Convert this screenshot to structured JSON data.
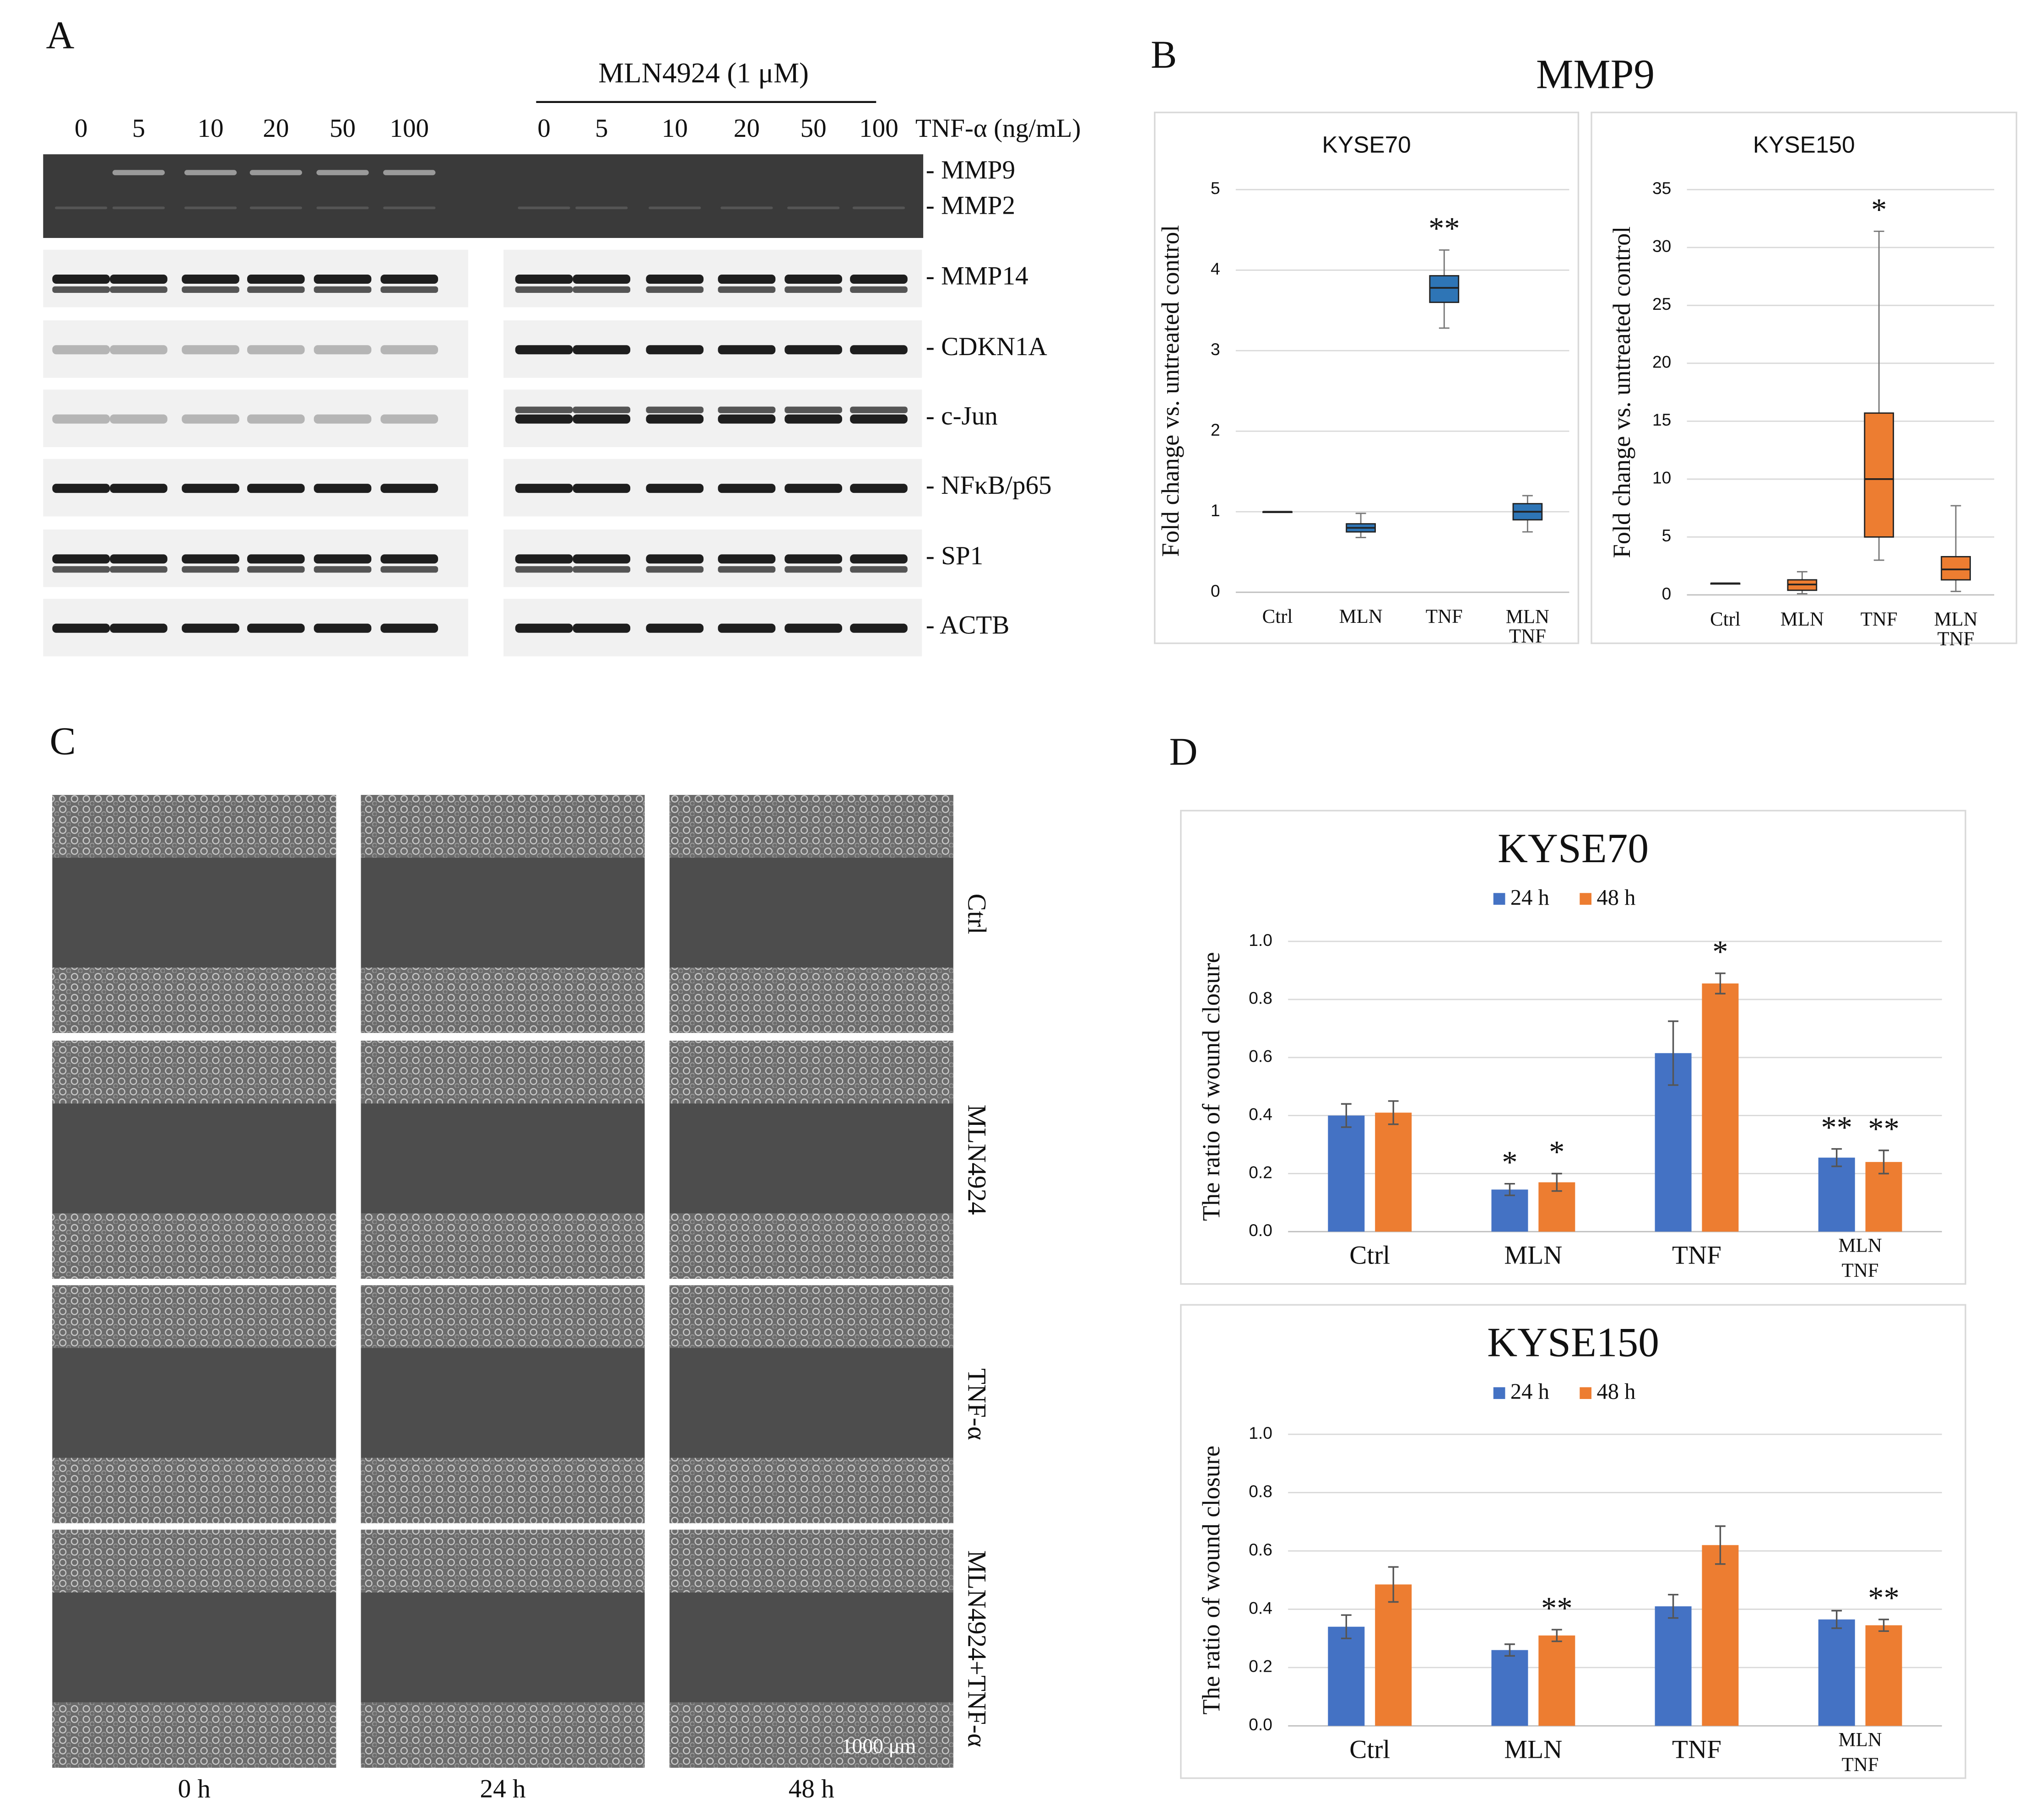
{
  "panels": [
    "A",
    "B",
    "C",
    "D"
  ],
  "blot": {
    "treatment_label": "MLN4924 (1 μM)",
    "doses": [
      0,
      5,
      10,
      20,
      50,
      100,
      0,
      5,
      10,
      20,
      50,
      100
    ],
    "dose_unit": "TNF-α (ng/mL)",
    "proteins": [
      "- MMP9",
      "- MMP2",
      "- MMP14",
      "- CDKN1A",
      "- c-Jun",
      "- NFκB/p65",
      "- SP1",
      "- ACTB"
    ]
  },
  "wound": {
    "conditions": [
      "Ctrl",
      "MLN4924",
      "TNF-α",
      "MLN4924+TNF-α"
    ],
    "times": [
      "0 h",
      "24 h",
      "48 h"
    ],
    "scale_bar": "1000 μm"
  },
  "b_title": "MMP9",
  "chart_data": [
    {
      "type": "box",
      "title": "KYSE70",
      "ylabel": "Fold change vs. untreated control",
      "categories": [
        "Ctrl",
        "MLN",
        "TNF",
        "MLN TNF"
      ],
      "color": "#2e75b6",
      "boxes": [
        {
          "min": 1,
          "q1": 1,
          "median": 1,
          "q3": 1,
          "max": 1
        },
        {
          "min": 0.68,
          "q1": 0.75,
          "median": 0.8,
          "q3": 0.85,
          "max": 0.98
        },
        {
          "min": 3.28,
          "q1": 3.6,
          "median": 3.78,
          "q3": 3.93,
          "max": 4.25
        },
        {
          "min": 0.75,
          "q1": 0.9,
          "median": 1.0,
          "q3": 1.1,
          "max": 1.2
        }
      ],
      "annotations": [
        null,
        null,
        "**",
        null
      ],
      "ylim": [
        0,
        5
      ],
      "yticks": [
        0,
        1,
        2,
        3,
        4,
        5
      ],
      "grid": true
    },
    {
      "type": "box",
      "title": "KYSE150",
      "ylabel": "Fold change vs. untreated control",
      "categories": [
        "Ctrl",
        "MLN",
        "TNF",
        "MLN TNF"
      ],
      "color": "#ed7d31",
      "boxes": [
        {
          "min": 1,
          "q1": 1,
          "median": 1,
          "q3": 1,
          "max": 1
        },
        {
          "min": 0.1,
          "q1": 0.4,
          "median": 0.9,
          "q3": 1.3,
          "max": 2.0
        },
        {
          "min": 3,
          "q1": 5,
          "median": 10,
          "q3": 15.7,
          "max": 31.4
        },
        {
          "min": 0.3,
          "q1": 1.3,
          "median": 2.2,
          "q3": 3.3,
          "max": 7.7
        }
      ],
      "annotations": [
        null,
        null,
        "*",
        null
      ],
      "ylim": [
        0,
        35
      ],
      "yticks": [
        0,
        5,
        10,
        15,
        20,
        25,
        30,
        35
      ],
      "grid": true
    },
    {
      "type": "bar",
      "title": "KYSE70",
      "ylabel": "The ratio of wound closure",
      "categories": [
        "Ctrl",
        "MLN",
        "TNF",
        "MLN TNF"
      ],
      "series": [
        {
          "name": "24 h",
          "color": "#4472c4",
          "values": [
            0.4,
            0.145,
            0.615,
            0.255
          ],
          "errors": [
            0.04,
            0.02,
            0.11,
            0.03
          ],
          "annotations": [
            null,
            "*",
            null,
            "**"
          ]
        },
        {
          "name": "48 h",
          "color": "#ed7d31",
          "values": [
            0.41,
            0.17,
            0.855,
            0.24
          ],
          "errors": [
            0.04,
            0.03,
            0.035,
            0.04
          ],
          "annotations": [
            null,
            "*",
            "*",
            "**"
          ]
        }
      ],
      "ylim": [
        0,
        1
      ],
      "yticks": [
        {
          "value": 0,
          "label": "0.0"
        },
        0.2,
        0.4,
        0.6,
        0.8,
        {
          "value": 1,
          "label": "1.0"
        }
      ],
      "grid": true,
      "legend": "top"
    },
    {
      "type": "bar",
      "title": "KYSE150",
      "ylabel": "The ratio of wound closure",
      "categories": [
        "Ctrl",
        "MLN",
        "TNF",
        "MLN TNF"
      ],
      "series": [
        {
          "name": "24 h",
          "color": "#4472c4",
          "values": [
            0.34,
            0.26,
            0.41,
            0.365
          ],
          "errors": [
            0.04,
            0.02,
            0.04,
            0.03
          ],
          "annotations": [
            null,
            null,
            null,
            null
          ]
        },
        {
          "name": "48 h",
          "color": "#ed7d31",
          "values": [
            0.485,
            0.31,
            0.62,
            0.345
          ],
          "errors": [
            0.06,
            0.02,
            0.065,
            0.02
          ],
          "annotations": [
            null,
            "**",
            null,
            "**"
          ]
        }
      ],
      "ylim": [
        0,
        1
      ],
      "yticks": [
        {
          "value": 0,
          "label": "0.0"
        },
        0.2,
        0.4,
        0.6,
        0.8,
        {
          "value": 1,
          "label": "1.0"
        }
      ],
      "grid": true,
      "legend": "top"
    }
  ]
}
